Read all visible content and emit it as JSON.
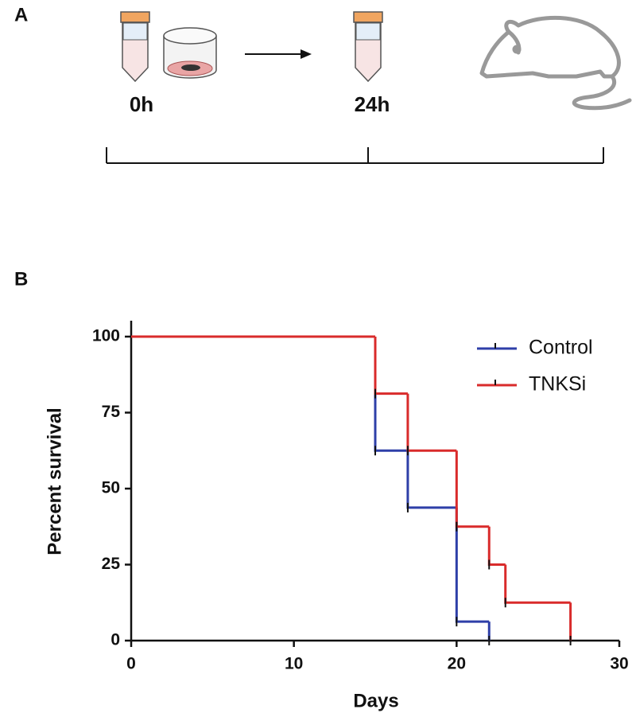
{
  "figure": {
    "panel_labels": [
      "A",
      "B"
    ],
    "timepoints": [
      "0h",
      "24h"
    ]
  },
  "chart_data": {
    "type": "step",
    "xlabel": "Days",
    "ylabel": "Percent survival",
    "series": [
      {
        "name": "Control",
        "color": "#2e3fa8",
        "x": [
          0,
          15,
          17,
          20,
          22
        ],
        "values": [
          100,
          62.5,
          43.75,
          6.25,
          0
        ]
      },
      {
        "name": "TNKSi",
        "color": "#d92b2b",
        "x": [
          0,
          15,
          17,
          20,
          22,
          23,
          27
        ],
        "values": [
          100,
          81.25,
          62.5,
          37.5,
          25,
          12.5,
          0
        ]
      }
    ],
    "xlim": [
      0,
      30
    ],
    "xticks": [
      0,
      10,
      20,
      30
    ],
    "ylim": [
      0,
      100
    ],
    "yticks": [
      0,
      25,
      50,
      75,
      100
    ],
    "legend": "upper-right"
  }
}
